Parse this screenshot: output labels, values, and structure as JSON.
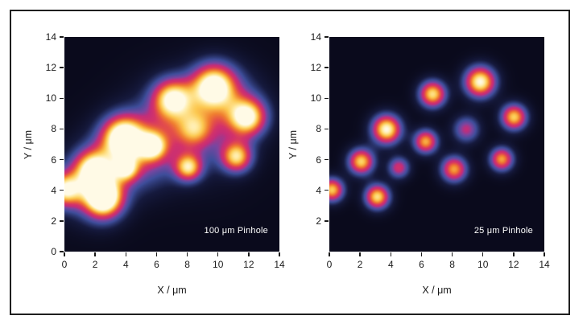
{
  "figure": {
    "background": "#ffffff",
    "border_color": "#1f1f1f",
    "plot_background": "#0a0a1c",
    "axis_text_color": "#1a1a1a",
    "annotation_text_color": "#ffffff"
  },
  "colormap": {
    "stops": [
      [
        0.0,
        "#0a0a1c"
      ],
      [
        0.14,
        "#161a3e"
      ],
      [
        0.3,
        "#3e4e9b"
      ],
      [
        0.42,
        "#7a46a0"
      ],
      [
        0.5,
        "#c32d7a"
      ],
      [
        0.58,
        "#d43368"
      ],
      [
        0.65,
        "#e45048"
      ],
      [
        0.73,
        "#f08030"
      ],
      [
        0.84,
        "#fcc850"
      ],
      [
        0.93,
        "#ffeaa0"
      ],
      [
        1.0,
        "#fffae6"
      ]
    ]
  },
  "chart_data": [
    {
      "type": "heatmap",
      "annotation": "100 μm Pinhole",
      "xlabel": "X / μm",
      "ylabel": "Y / μm",
      "xlim": [
        0,
        14
      ],
      "ylim": [
        0,
        14
      ],
      "x_tick_values": [
        0,
        2,
        4,
        6,
        8,
        10,
        12,
        14
      ],
      "x_tick_labels": [
        "0",
        "2",
        "4",
        "6",
        "8",
        "10",
        "12",
        "14"
      ],
      "y_tick_values": [
        0,
        2,
        4,
        6,
        8,
        10,
        12,
        14
      ],
      "y_tick_labels": [
        "0",
        "2",
        "4",
        "6",
        "8",
        "10",
        "12",
        "14"
      ],
      "blobs": [
        {
          "x": 0.0,
          "y": 4.05,
          "intensity": 0.8,
          "sigma": 0.75
        },
        {
          "x": 1.85,
          "y": 5.4,
          "intensity": 0.82,
          "sigma": 0.85
        },
        {
          "x": 2.5,
          "y": 3.6,
          "intensity": 1.0,
          "sigma": 0.85
        },
        {
          "x": 3.8,
          "y": 7.5,
          "intensity": 0.97,
          "sigma": 0.95
        },
        {
          "x": 4.0,
          "y": 5.4,
          "intensity": 0.6,
          "sigma": 0.55
        },
        {
          "x": 5.7,
          "y": 6.9,
          "intensity": 0.7,
          "sigma": 0.62
        },
        {
          "x": 7.0,
          "y": 10.0,
          "intensity": 0.82,
          "sigma": 0.9
        },
        {
          "x": 8.05,
          "y": 5.5,
          "intensity": 0.75,
          "sigma": 0.62
        },
        {
          "x": 8.45,
          "y": 8.0,
          "intensity": 0.45,
          "sigma": 0.8
        },
        {
          "x": 9.7,
          "y": 10.85,
          "intensity": 0.93,
          "sigma": 1.0
        },
        {
          "x": 11.9,
          "y": 8.8,
          "intensity": 0.88,
          "sigma": 0.85
        },
        {
          "x": 11.2,
          "y": 6.2,
          "intensity": 0.8,
          "sigma": 0.7
        }
      ],
      "haze": [
        {
          "x": 1.2,
          "y": 4.2,
          "intensity": 0.28,
          "sigma": 1.5
        },
        {
          "x": 2.6,
          "y": 3.0,
          "intensity": 0.22,
          "sigma": 1.0
        },
        {
          "x": 3.2,
          "y": 6.0,
          "intensity": 0.26,
          "sigma": 1.7
        },
        {
          "x": 5.0,
          "y": 6.2,
          "intensity": 0.24,
          "sigma": 1.5
        },
        {
          "x": 6.3,
          "y": 8.0,
          "intensity": 0.24,
          "sigma": 1.9
        },
        {
          "x": 9.0,
          "y": 8.3,
          "intensity": 0.3,
          "sigma": 2.2
        },
        {
          "x": 10.8,
          "y": 9.8,
          "intensity": 0.22,
          "sigma": 1.6
        }
      ]
    },
    {
      "type": "heatmap",
      "annotation": "25 μm Pinhole",
      "xlabel": "X / μm",
      "ylabel": "Y / μm",
      "xlim": [
        0,
        14
      ],
      "ylim": [
        0,
        14
      ],
      "x_tick_values": [
        0,
        2,
        4,
        6,
        8,
        10,
        12,
        14
      ],
      "x_tick_labels": [
        "0",
        "2",
        "4",
        "6",
        "8",
        "10",
        "12",
        "14"
      ],
      "y_tick_values": [
        2,
        4,
        6,
        8,
        10,
        12,
        14
      ],
      "y_tick_labels": [
        "2",
        "4",
        "6",
        "8",
        "10",
        "12",
        "14"
      ],
      "blobs": [
        {
          "x": 0.15,
          "y": 4.05,
          "intensity": 0.85,
          "sigma": 0.55
        },
        {
          "x": 2.05,
          "y": 5.9,
          "intensity": 0.87,
          "sigma": 0.6
        },
        {
          "x": 3.1,
          "y": 3.6,
          "intensity": 0.9,
          "sigma": 0.57
        },
        {
          "x": 3.7,
          "y": 8.0,
          "intensity": 1.0,
          "sigma": 0.68
        },
        {
          "x": 4.5,
          "y": 5.5,
          "intensity": 0.56,
          "sigma": 0.5
        },
        {
          "x": 6.25,
          "y": 7.2,
          "intensity": 0.8,
          "sigma": 0.55
        },
        {
          "x": 6.7,
          "y": 10.3,
          "intensity": 0.9,
          "sigma": 0.62
        },
        {
          "x": 8.1,
          "y": 5.4,
          "intensity": 0.78,
          "sigma": 0.6
        },
        {
          "x": 8.9,
          "y": 8.0,
          "intensity": 0.5,
          "sigma": 0.62
        },
        {
          "x": 9.8,
          "y": 11.1,
          "intensity": 1.0,
          "sigma": 0.72
        },
        {
          "x": 11.2,
          "y": 6.05,
          "intensity": 0.78,
          "sigma": 0.55
        },
        {
          "x": 12.0,
          "y": 8.8,
          "intensity": 0.86,
          "sigma": 0.6
        }
      ],
      "haze": []
    }
  ]
}
